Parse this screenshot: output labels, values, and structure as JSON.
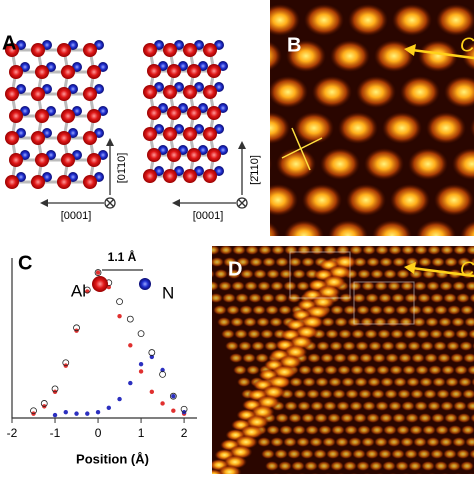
{
  "figure": {
    "panels": [
      {
        "label": "A"
      },
      {
        "label": "B"
      },
      {
        "label": "C"
      },
      {
        "label": "D"
      }
    ],
    "panel_a": {
      "axes": [
        "[01̄10]",
        "[0001]",
        "[2̄110]",
        "[0001]"
      ]
    },
    "panel_b": {
      "annotation": "C"
    },
    "panel_d": {
      "annotation": "C"
    }
  },
  "chart_data": {
    "type": "scatter",
    "annotation": "1.1 Å",
    "xlabel": "Position (Å)",
    "x": [
      -1.5,
      -1.25,
      -1,
      -0.75,
      -0.5,
      -0.25,
      0,
      0.25,
      0.5,
      0.75,
      1,
      1.25,
      1.5,
      1.75,
      2
    ],
    "series": [
      {
        "name": "Al",
        "color": "#e0302f",
        "values": [
          0.03,
          0.08,
          0.18,
          0.36,
          0.6,
          0.87,
          1.0,
          0.9,
          0.7,
          0.5,
          0.32,
          0.18,
          0.1,
          0.05,
          0.03
        ]
      },
      {
        "name": "N",
        "color": "#2b2fbf",
        "values": [
          null,
          null,
          0.02,
          0.04,
          0.03,
          0.03,
          0.04,
          0.07,
          0.13,
          0.24,
          0.37,
          0.42,
          0.33,
          0.15,
          0.04
        ]
      },
      {
        "color": "#222222",
        "values": [
          0.05,
          0.1,
          0.2,
          0.38,
          0.62,
          0.88,
          1.0,
          0.93,
          0.8,
          0.68,
          0.58,
          0.45,
          0.3,
          0.15,
          0.06
        ]
      }
    ],
    "xlim": [
      -2,
      2.3
    ],
    "xticks": [
      -2,
      -1,
      0,
      1,
      2
    ],
    "ylim": [
      0,
      1.1
    ]
  }
}
